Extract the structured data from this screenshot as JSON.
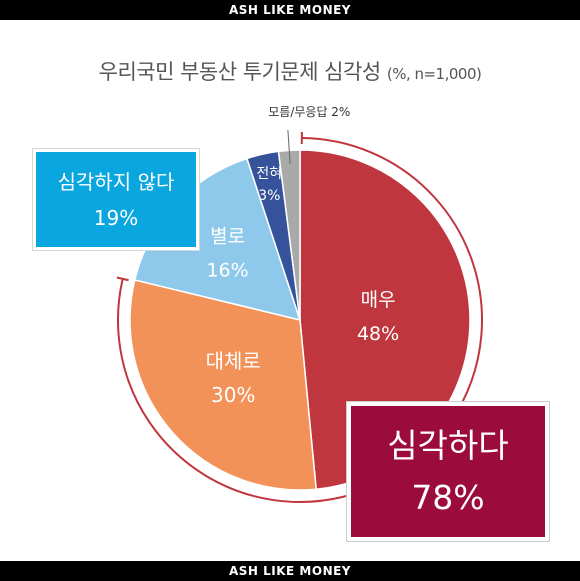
{
  "header": {
    "brand": "ASH LIKE MONEY"
  },
  "footer": {
    "brand": "ASH LIKE MONEY"
  },
  "chart_data": {
    "type": "pie",
    "title": "우리국민 부동산 투기문제 심각성",
    "subtitle": "(%, n=1,000)",
    "slices": [
      {
        "label": "매우",
        "value": 48,
        "value_label": "48%",
        "color": "#c0363e"
      },
      {
        "label": "대체로",
        "value": 30,
        "value_label": "30%",
        "color": "#f29158"
      },
      {
        "label": "별로",
        "value": 16,
        "value_label": "16%",
        "color": "#8ec9ec"
      },
      {
        "label": "전혀",
        "value": 3,
        "value_label": "3%",
        "color": "#35529b"
      },
      {
        "label": "모름/무응답",
        "value": 2,
        "value_label": "2%",
        "color": "#a9a9a9"
      }
    ],
    "groups": [
      {
        "label": "심각하다",
        "value": 78,
        "value_label": "78%",
        "color": "#9b0b3b"
      },
      {
        "label": "심각하지 않다",
        "value": 19,
        "value_label": "19%",
        "color": "#0aa6df"
      }
    ]
  }
}
